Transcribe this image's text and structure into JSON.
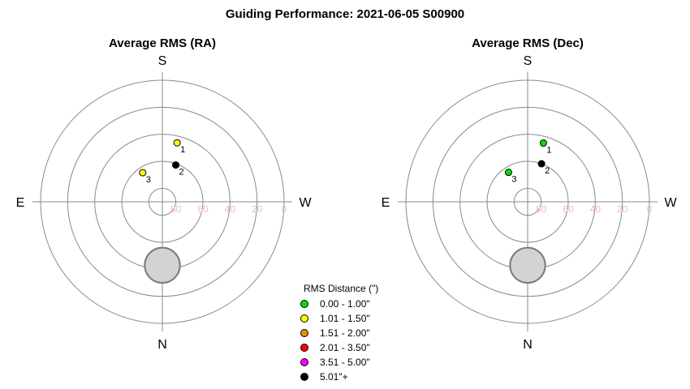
{
  "title": "Guiding Performance: 2021-06-05 S00900",
  "compass": {
    "top": "S",
    "bottom": "N",
    "left": "E",
    "right": "W"
  },
  "altitude_ticks": [
    "80",
    "60",
    "40",
    "20",
    "0"
  ],
  "legend": {
    "title": "RMS Distance (\")",
    "items": [
      {
        "label": "0.00 - 1.00\"",
        "color": "#00e000"
      },
      {
        "label": "1.01 - 1.50\"",
        "color": "#ffff00"
      },
      {
        "label": "1.51 - 2.00\"",
        "color": "#e69000"
      },
      {
        "label": "2.01 - 3.50\"",
        "color": "#ff0000"
      },
      {
        "label": "3.51 - 5.00\"",
        "color": "#ff00ff"
      },
      {
        "label": "5.01\"+",
        "color": "#000000"
      }
    ]
  },
  "chart_data": [
    {
      "type": "scatter",
      "projection": "polar (altitude/azimuth)",
      "title": "Average RMS (RA)",
      "radial_axis": {
        "quantity": "altitude (deg)",
        "range": [
          90,
          0
        ],
        "ticks": [
          80,
          60,
          40,
          20,
          0
        ]
      },
      "moon": {
        "azimuth": 0,
        "altitude": 43,
        "radius_deg": 13
      },
      "points": [
        {
          "label": "1",
          "azimuth": 194,
          "altitude": 45,
          "color": "#ffff00"
        },
        {
          "label": "2",
          "azimuth": 200,
          "altitude": 61,
          "color": "#000000"
        },
        {
          "label": "3",
          "azimuth": 146,
          "altitude": 64,
          "color": "#ffff00"
        }
      ]
    },
    {
      "type": "scatter",
      "projection": "polar (altitude/azimuth)",
      "title": "Average RMS (Dec)",
      "radial_axis": {
        "quantity": "altitude (deg)",
        "range": [
          90,
          0
        ],
        "ticks": [
          80,
          60,
          40,
          20,
          0
        ]
      },
      "moon": {
        "azimuth": 0,
        "altitude": 43,
        "radius_deg": 13
      },
      "points": [
        {
          "label": "1",
          "azimuth": 195,
          "altitude": 45,
          "color": "#00e000"
        },
        {
          "label": "2",
          "azimuth": 200,
          "altitude": 60,
          "color": "#000000"
        },
        {
          "label": "3",
          "azimuth": 147,
          "altitude": 64,
          "color": "#00e000"
        }
      ]
    }
  ]
}
